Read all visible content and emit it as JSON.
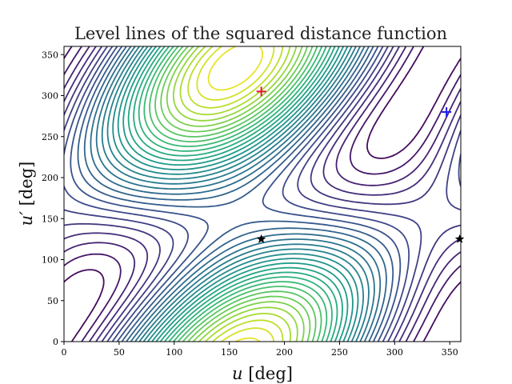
{
  "chart_data": {
    "type": "contour",
    "title": "Level lines of the squared distance function",
    "xlabel": {
      "var": "u",
      "unit": " [deg]"
    },
    "ylabel": {
      "var": "u′",
      "unit": " [deg]"
    },
    "xlim": [
      0,
      360
    ],
    "ylim": [
      0,
      360
    ],
    "xticks": [
      0,
      50,
      100,
      150,
      200,
      250,
      300,
      350
    ],
    "yticks": [
      0,
      50,
      100,
      150,
      200,
      250,
      300,
      350
    ],
    "colormap": "viridis",
    "contour_levels": 30,
    "markers": [
      {
        "name": "maximum",
        "symbol": "plus",
        "color": "#e8122c",
        "x": 179,
        "y": 305
      },
      {
        "name": "reference",
        "symbol": "plus",
        "color": "#1f1fef",
        "x": 347,
        "y": 280
      },
      {
        "name": "saddle",
        "symbol": "star",
        "color": "#000000",
        "x": 179,
        "y": 125
      },
      {
        "name": "saddle-edge",
        "symbol": "star",
        "color": "#000000",
        "x": 359,
        "y": 125
      }
    ]
  }
}
